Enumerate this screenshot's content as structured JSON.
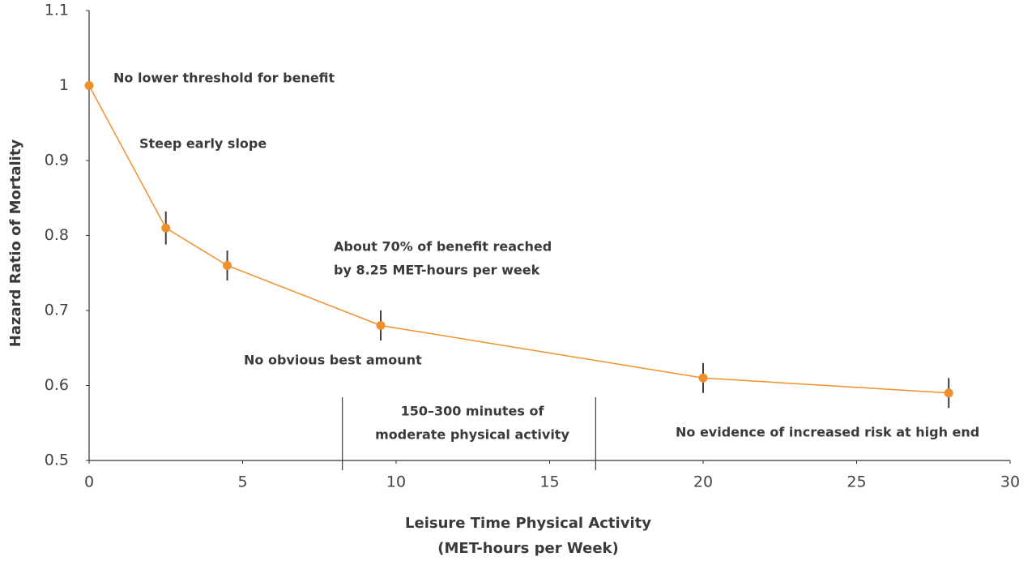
{
  "chart_data": {
    "type": "line",
    "x_label": [
      "Leisure Time Physical Activity",
      "(MET-hours per Week)"
    ],
    "y_label": "Hazard Ratio of Mortality",
    "x": [
      0,
      2.5,
      4.5,
      9.5,
      20,
      28
    ],
    "values": [
      1.0,
      0.81,
      0.76,
      0.68,
      0.61,
      0.59
    ],
    "errors": [
      null,
      0.022,
      0.02,
      0.02,
      0.02,
      0.02
    ],
    "color": "#f0902a",
    "error_color": "#3a3f44",
    "xlim": [
      0,
      30
    ],
    "xticks": [
      0,
      5,
      10,
      15,
      20,
      25,
      30
    ],
    "ylim": [
      0.5,
      1.1
    ],
    "yticks": [
      0.5,
      0.6,
      0.7,
      0.8,
      0.9,
      1,
      1.1
    ],
    "reference_lines": [
      8.25,
      16.5
    ],
    "annotations": [
      [
        "No lower threshold for benefit"
      ],
      [
        "Steep early slope"
      ],
      [
        "About 70% of benefit reached",
        "by 8.25 MET-hours per week"
      ],
      [
        "No obvious best amount"
      ],
      [
        "150–300 minutes of",
        "moderate physical activity"
      ],
      [
        "No evidence of increased risk at high end"
      ]
    ]
  }
}
